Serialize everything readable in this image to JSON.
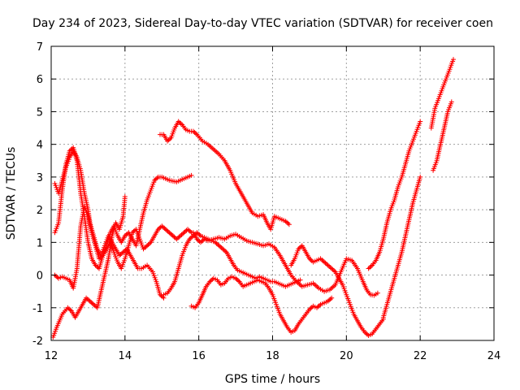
{
  "chart_data": {
    "type": "scatter",
    "title": "Day 234 of 2023, Sidereal Day-to-day VTEC variation (SDTVAR) for receiver coen",
    "xlabel": "GPS time / hours",
    "ylabel": "SDTVAR / TECUs",
    "xlim": [
      12,
      24
    ],
    "ylim": [
      -2,
      7
    ],
    "xticks": [
      12,
      14,
      16,
      18,
      20,
      22,
      24
    ],
    "yticks": [
      -2,
      -1,
      0,
      1,
      2,
      3,
      4,
      5,
      6,
      7
    ],
    "grid": true,
    "marker": "+",
    "color": "#ff0000",
    "series": [
      {
        "name": "s1",
        "x": [
          12.05,
          12.15,
          12.3,
          12.45,
          12.55,
          12.65,
          12.75,
          12.85,
          12.95,
          13.05,
          13.15,
          13.25,
          13.35,
          13.45,
          13.55,
          13.65,
          13.75,
          13.85,
          13.95,
          14.0
        ],
        "y": [
          -1.9,
          -1.6,
          -1.2,
          -1.0,
          -1.1,
          -1.3,
          -1.1,
          -0.9,
          -0.7,
          -0.8,
          -0.9,
          -1.0,
          -0.5,
          0.0,
          0.5,
          1.2,
          1.6,
          1.4,
          1.8,
          2.4
        ]
      },
      {
        "name": "s2",
        "x": [
          12.1,
          12.2,
          12.3,
          12.4,
          12.5,
          12.6,
          12.7,
          12.8,
          12.9,
          13.0,
          13.05,
          13.15,
          13.25,
          13.35,
          13.45,
          13.55,
          13.65,
          13.75,
          13.85,
          13.95,
          14.05,
          14.15,
          14.25,
          14.35,
          14.45,
          14.6,
          14.75,
          14.85,
          14.95,
          15.05
        ],
        "y": [
          2.8,
          2.5,
          2.9,
          3.3,
          3.6,
          3.8,
          3.6,
          3.2,
          2.5,
          2.0,
          1.6,
          1.2,
          0.8,
          0.6,
          0.9,
          1.2,
          1.0,
          0.8,
          0.6,
          0.7,
          0.8,
          0.6,
          0.4,
          0.2,
          0.2,
          0.3,
          0.1,
          -0.2,
          -0.6,
          -0.7
        ]
      },
      {
        "name": "s3",
        "x": [
          12.1,
          12.2,
          12.3,
          12.4,
          12.5,
          12.6,
          12.7,
          12.8,
          12.9,
          13.0,
          13.1,
          13.2,
          13.3,
          13.4,
          13.5,
          13.6,
          13.7,
          13.8,
          13.9,
          14.0,
          14.1,
          14.2,
          14.3,
          14.4,
          14.5,
          14.6,
          14.7,
          14.8,
          14.9,
          15.0,
          15.2,
          15.4,
          15.6,
          15.8
        ],
        "y": [
          1.3,
          1.6,
          2.6,
          3.4,
          3.8,
          3.9,
          3.5,
          2.5,
          1.8,
          1.0,
          0.5,
          0.3,
          0.2,
          0.6,
          0.9,
          1.3,
          1.5,
          1.2,
          1.0,
          1.2,
          1.3,
          1.1,
          0.9,
          1.4,
          1.9,
          2.3,
          2.6,
          2.9,
          3.0,
          3.0,
          2.9,
          2.85,
          2.95,
          3.05
        ]
      },
      {
        "name": "s4",
        "x": [
          12.1,
          12.2,
          12.3,
          12.4,
          12.5,
          12.6,
          12.7,
          12.8,
          12.9,
          13.0,
          13.1,
          13.2,
          13.3,
          13.4,
          13.5,
          13.6,
          13.7,
          13.8,
          13.9,
          14.0,
          14.1,
          14.2,
          14.3,
          14.4,
          14.5,
          14.6,
          14.7,
          14.8,
          14.9,
          15.0,
          15.1,
          15.2,
          15.3,
          15.4,
          15.5,
          15.6,
          15.7,
          15.8
        ],
        "y": [
          0.0,
          -0.1,
          -0.05,
          -0.1,
          -0.15,
          -0.4,
          0.2,
          1.5,
          2.1,
          1.8,
          1.3,
          0.9,
          0.5,
          0.6,
          0.8,
          1.0,
          0.7,
          0.4,
          0.2,
          0.5,
          0.9,
          1.3,
          1.4,
          1.1,
          0.8,
          0.9,
          1.0,
          1.2,
          1.4,
          1.5,
          1.4,
          1.3,
          1.2,
          1.1,
          1.2,
          1.3,
          1.4,
          1.3
        ]
      },
      {
        "name": "s5",
        "x": [
          14.95,
          15.05,
          15.15,
          15.25,
          15.35,
          15.45,
          15.55,
          15.65,
          15.75,
          15.85,
          15.95,
          16.1,
          16.25,
          16.4,
          16.55,
          16.7,
          16.85,
          17.0,
          17.15,
          17.3,
          17.45,
          17.6,
          17.75,
          17.85,
          17.95,
          18.05,
          18.15,
          18.25,
          18.35,
          18.45
        ],
        "y": [
          4.3,
          4.3,
          4.1,
          4.2,
          4.5,
          4.7,
          4.6,
          4.45,
          4.4,
          4.4,
          4.3,
          4.1,
          4.0,
          3.85,
          3.7,
          3.5,
          3.2,
          2.8,
          2.5,
          2.2,
          1.9,
          1.8,
          1.85,
          1.6,
          1.4,
          1.8,
          1.75,
          1.7,
          1.65,
          1.55
        ]
      },
      {
        "name": "s6",
        "x": [
          15.85,
          15.95,
          16.05,
          16.15,
          16.25,
          16.4,
          16.55,
          16.7,
          16.85,
          17.0,
          17.15,
          17.3,
          17.45,
          17.6,
          17.75,
          17.9,
          18.05,
          18.2,
          18.35,
          18.5,
          18.65,
          18.8,
          18.95,
          19.1,
          19.25,
          19.4,
          19.55,
          19.7,
          19.85,
          20.0,
          20.15,
          20.3,
          20.45,
          20.55,
          20.65,
          20.75,
          20.85
        ],
        "y": [
          1.3,
          1.1,
          1.0,
          1.1,
          1.05,
          1.1,
          1.15,
          1.1,
          1.2,
          1.25,
          1.15,
          1.05,
          1.0,
          0.95,
          0.9,
          0.95,
          0.85,
          0.6,
          0.3,
          0.0,
          -0.2,
          -0.35,
          -0.3,
          -0.25,
          -0.4,
          -0.5,
          -0.45,
          -0.3,
          0.1,
          0.5,
          0.45,
          0.2,
          -0.2,
          -0.45,
          -0.6,
          -0.62,
          -0.55
        ]
      },
      {
        "name": "s7",
        "x": [
          15.05,
          15.15,
          15.25,
          15.35,
          15.45,
          15.55,
          15.65,
          15.75,
          15.85,
          15.95,
          16.05,
          16.15,
          16.25,
          16.35,
          16.45,
          16.55,
          16.65,
          16.75,
          16.85,
          16.95,
          17.05,
          17.15,
          17.25,
          17.35,
          17.45,
          17.55,
          17.65,
          17.75,
          17.85,
          17.95,
          18.05,
          18.15,
          18.25,
          18.35,
          18.45,
          18.55,
          18.65,
          18.75
        ],
        "y": [
          -0.6,
          -0.55,
          -0.4,
          -0.2,
          0.2,
          0.6,
          0.9,
          1.1,
          1.2,
          1.3,
          1.2,
          1.15,
          1.1,
          1.05,
          1.0,
          0.9,
          0.8,
          0.7,
          0.5,
          0.3,
          0.15,
          0.1,
          0.05,
          0.0,
          -0.05,
          -0.1,
          -0.05,
          -0.1,
          -0.15,
          -0.2,
          -0.2,
          -0.25,
          -0.3,
          -0.35,
          -0.3,
          -0.25,
          -0.2,
          -0.15
        ]
      },
      {
        "name": "s8",
        "x": [
          15.8,
          15.9,
          16.0,
          16.1,
          16.2,
          16.3,
          16.4,
          16.5,
          16.6,
          16.7,
          16.8,
          16.9,
          17.0,
          17.1,
          17.2,
          17.3,
          17.4,
          17.5,
          17.6,
          17.7,
          17.8,
          17.9,
          18.0,
          18.1,
          18.2,
          18.3,
          18.4,
          18.5,
          18.6,
          18.7,
          18.8,
          18.9,
          19.0,
          19.1,
          19.2,
          19.3,
          19.4,
          19.5,
          19.6
        ],
        "y": [
          -0.95,
          -1.0,
          -0.85,
          -0.6,
          -0.35,
          -0.2,
          -0.1,
          -0.15,
          -0.3,
          -0.25,
          -0.1,
          -0.05,
          -0.1,
          -0.2,
          -0.35,
          -0.3,
          -0.25,
          -0.2,
          -0.15,
          -0.2,
          -0.25,
          -0.4,
          -0.6,
          -0.9,
          -1.2,
          -1.4,
          -1.6,
          -1.75,
          -1.7,
          -1.5,
          -1.35,
          -1.2,
          -1.05,
          -0.95,
          -1.0,
          -0.9,
          -0.85,
          -0.8,
          -0.7
        ]
      },
      {
        "name": "s9",
        "x": [
          18.5,
          18.6,
          18.7,
          18.8,
          18.9,
          19.0,
          19.1,
          19.2,
          19.3,
          19.4,
          19.5,
          19.6,
          19.7,
          19.8,
          19.9,
          20.0,
          20.1,
          20.2,
          20.3,
          20.4,
          20.5,
          20.6,
          20.7,
          20.8,
          20.9,
          21.0
        ],
        "y": [
          0.3,
          0.5,
          0.8,
          0.9,
          0.7,
          0.5,
          0.4,
          0.45,
          0.5,
          0.4,
          0.3,
          0.2,
          0.1,
          -0.1,
          -0.3,
          -0.6,
          -0.9,
          -1.2,
          -1.4,
          -1.6,
          -1.75,
          -1.85,
          -1.8,
          -1.65,
          -1.5,
          -1.35
        ]
      },
      {
        "name": "s10",
        "x": [
          20.6,
          20.7,
          20.8,
          20.9,
          21.0,
          21.1,
          21.2,
          21.3,
          21.4,
          21.5,
          21.6,
          21.7,
          21.8,
          21.9,
          22.0
        ],
        "y": [
          0.2,
          0.3,
          0.45,
          0.7,
          1.1,
          1.6,
          2.0,
          2.3,
          2.7,
          3.0,
          3.4,
          3.8,
          4.1,
          4.4,
          4.7
        ]
      },
      {
        "name": "s11",
        "x": [
          21.0,
          21.1,
          21.2,
          21.3,
          21.4,
          21.5,
          21.6,
          21.7,
          21.8,
          21.9,
          22.0
        ],
        "y": [
          -1.3,
          -0.9,
          -0.5,
          -0.1,
          0.3,
          0.7,
          1.2,
          1.7,
          2.2,
          2.6,
          3.0
        ]
      },
      {
        "name": "s12",
        "x": [
          22.3,
          22.4,
          22.5,
          22.6,
          22.7,
          22.8,
          22.9
        ],
        "y": [
          4.5,
          5.1,
          5.4,
          5.7,
          6.0,
          6.3,
          6.6
        ]
      },
      {
        "name": "s13",
        "x": [
          22.35,
          22.45,
          22.55,
          22.65,
          22.75,
          22.85
        ],
        "y": [
          3.2,
          3.5,
          4.0,
          4.5,
          5.0,
          5.3
        ]
      }
    ]
  }
}
